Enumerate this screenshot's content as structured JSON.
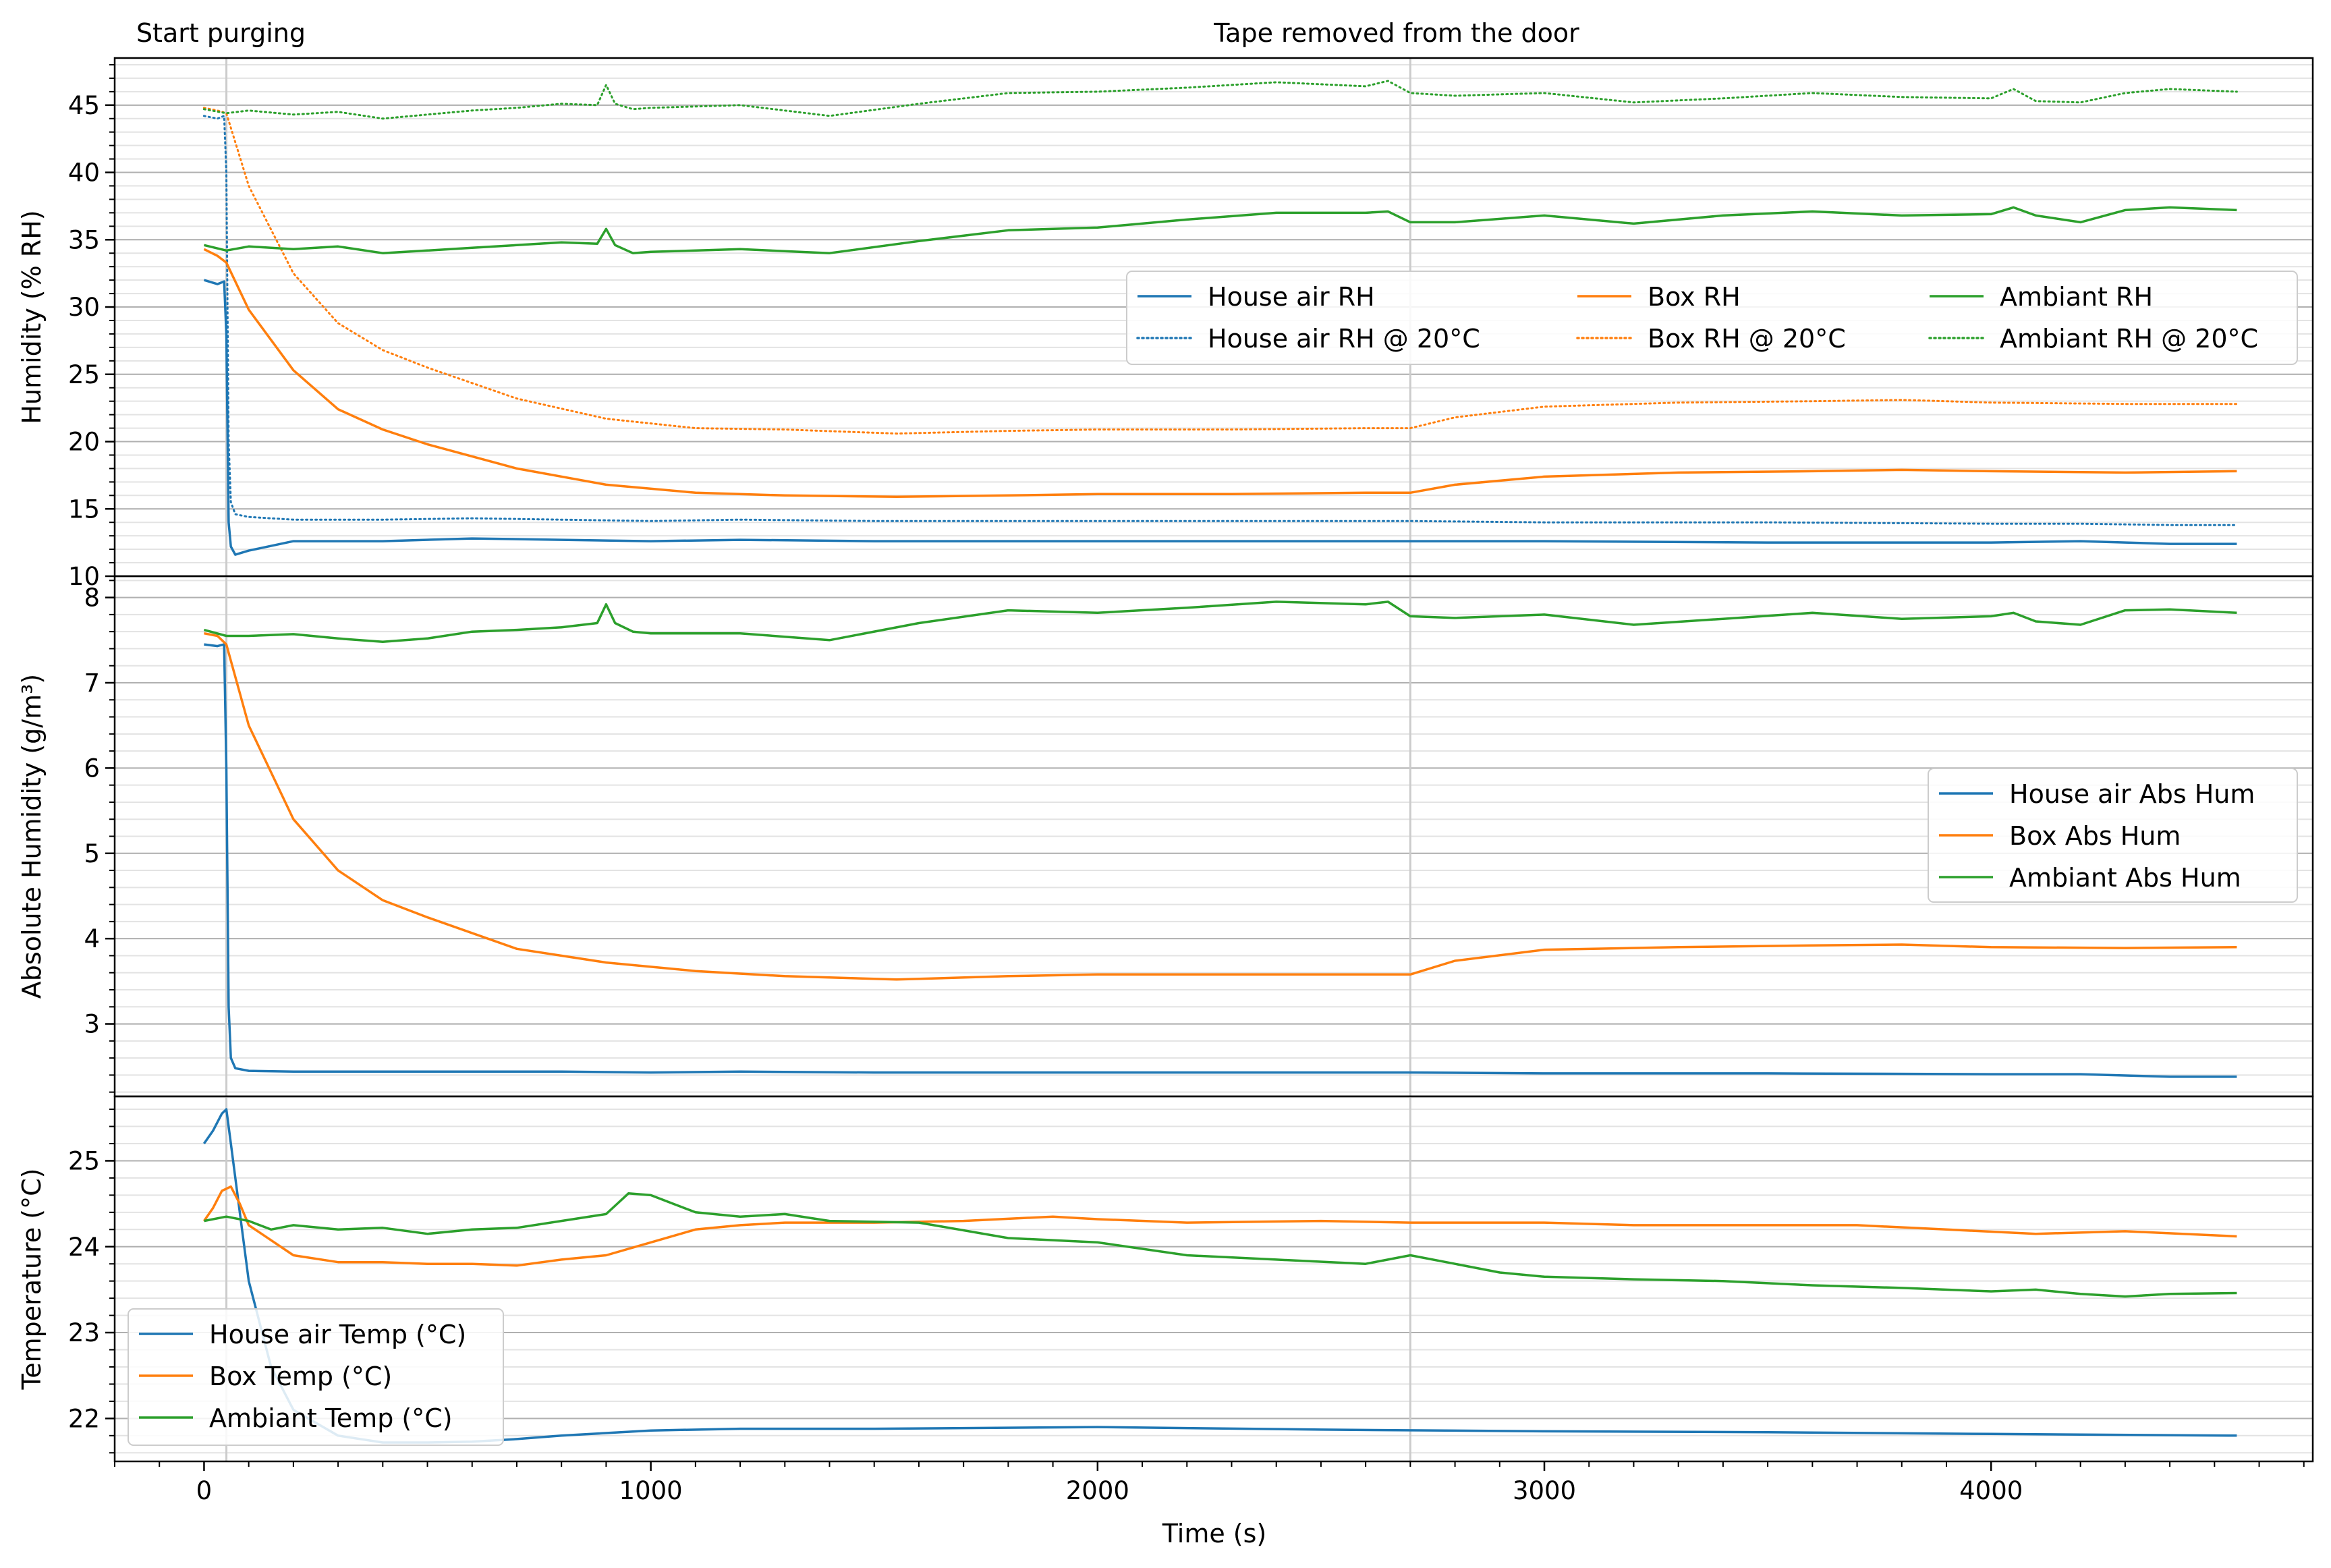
{
  "figure": {
    "xlabel": "Time (s)",
    "x_ticks": [
      0,
      1000,
      2000,
      3000,
      4000
    ],
    "annotations": [
      {
        "text": "Start purging",
        "x": 50
      },
      {
        "text": "Tape removed from the door",
        "x": 2700
      }
    ],
    "vlines_x": [
      50,
      2700
    ],
    "colors": {
      "house": "#1f77b4",
      "box": "#ff7f0e",
      "ambiant": "#2ca02c",
      "vline": "#cccccc",
      "grid_major": "#b0b0b0",
      "grid_minor": "#e3e3e3"
    },
    "grid": true
  },
  "chart_data": [
    {
      "type": "line",
      "ylabel": "Humidity (% RH)",
      "xlim": [
        -200,
        4720
      ],
      "ylim": [
        10,
        48.5
      ],
      "y_ticks": [
        10,
        15,
        20,
        25,
        30,
        35,
        40,
        45
      ],
      "legend": {
        "placement": "center-right",
        "columns": 3
      },
      "series": [
        {
          "name": "House air RH",
          "style": "solid",
          "color": "#1f77b4",
          "x": [
            0,
            30,
            45,
            50,
            55,
            60,
            70,
            100,
            200,
            400,
            600,
            800,
            1000,
            1200,
            1500,
            2000,
            2500,
            2700,
            3000,
            3500,
            4000,
            4200,
            4400,
            4550
          ],
          "y": [
            32.0,
            31.7,
            31.9,
            28,
            14,
            12.2,
            11.6,
            11.9,
            12.6,
            12.6,
            12.8,
            12.7,
            12.6,
            12.7,
            12.6,
            12.6,
            12.6,
            12.6,
            12.6,
            12.5,
            12.5,
            12.6,
            12.4,
            12.4
          ]
        },
        {
          "name": "House air RH @ 20°C",
          "style": "dotted",
          "color": "#1f77b4",
          "x": [
            0,
            30,
            45,
            50,
            55,
            60,
            70,
            100,
            200,
            400,
            600,
            800,
            1000,
            1200,
            1500,
            2000,
            2500,
            2700,
            3000,
            3500,
            4000,
            4200,
            4400,
            4550
          ],
          "y": [
            44.2,
            44.0,
            44.2,
            40,
            20,
            15.5,
            14.6,
            14.4,
            14.2,
            14.2,
            14.3,
            14.2,
            14.1,
            14.2,
            14.1,
            14.1,
            14.1,
            14.1,
            14.0,
            14.0,
            13.9,
            13.9,
            13.8,
            13.8
          ]
        },
        {
          "name": "Box RH",
          "style": "solid",
          "color": "#ff7f0e",
          "x": [
            0,
            30,
            50,
            100,
            200,
            300,
            400,
            500,
            700,
            900,
            1100,
            1300,
            1550,
            1800,
            2000,
            2300,
            2600,
            2700,
            2800,
            3000,
            3300,
            3600,
            3800,
            4000,
            4300,
            4550
          ],
          "y": [
            34.3,
            33.8,
            33.3,
            29.8,
            25.3,
            22.4,
            20.9,
            19.8,
            18.0,
            16.8,
            16.2,
            16.0,
            15.9,
            16.0,
            16.1,
            16.1,
            16.2,
            16.2,
            16.8,
            17.4,
            17.7,
            17.8,
            17.9,
            17.8,
            17.7,
            17.8
          ]
        },
        {
          "name": "Box RH @ 20°C",
          "style": "dotted",
          "color": "#ff7f0e",
          "x": [
            0,
            30,
            50,
            100,
            200,
            300,
            400,
            500,
            700,
            900,
            1100,
            1300,
            1550,
            1800,
            2000,
            2300,
            2600,
            2700,
            2800,
            3000,
            3300,
            3600,
            3800,
            4000,
            4300,
            4550
          ],
          "y": [
            44.8,
            44.6,
            44.4,
            39.0,
            32.5,
            28.8,
            26.8,
            25.5,
            23.2,
            21.7,
            21.0,
            20.9,
            20.6,
            20.8,
            20.9,
            20.9,
            21.0,
            21.0,
            21.8,
            22.6,
            22.9,
            23.0,
            23.1,
            22.9,
            22.8,
            22.8
          ]
        },
        {
          "name": "Ambiant RH",
          "style": "solid",
          "color": "#2ca02c",
          "x": [
            0,
            50,
            100,
            200,
            300,
            400,
            500,
            600,
            700,
            800,
            880,
            900,
            920,
            960,
            1000,
            1200,
            1400,
            1600,
            1800,
            2000,
            2200,
            2400,
            2600,
            2650,
            2700,
            2800,
            3000,
            3200,
            3400,
            3600,
            3800,
            4000,
            4050,
            4100,
            4200,
            4300,
            4400,
            4550
          ],
          "y": [
            34.6,
            34.2,
            34.5,
            34.3,
            34.5,
            34.0,
            34.2,
            34.4,
            34.6,
            34.8,
            34.7,
            35.8,
            34.6,
            34.0,
            34.1,
            34.3,
            34.0,
            34.9,
            35.7,
            35.9,
            36.5,
            37.0,
            37.0,
            37.1,
            36.3,
            36.3,
            36.8,
            36.2,
            36.8,
            37.1,
            36.8,
            36.9,
            37.4,
            36.8,
            36.3,
            37.2,
            37.4,
            37.2
          ]
        },
        {
          "name": "Ambiant RH @ 20°C",
          "style": "dotted",
          "color": "#2ca02c",
          "x": [
            0,
            50,
            100,
            200,
            300,
            400,
            500,
            600,
            700,
            800,
            880,
            900,
            920,
            960,
            1000,
            1200,
            1400,
            1600,
            1800,
            2000,
            2200,
            2400,
            2600,
            2650,
            2700,
            2800,
            3000,
            3200,
            3400,
            3600,
            3800,
            4000,
            4050,
            4100,
            4200,
            4300,
            4400,
            4550
          ],
          "y": [
            44.7,
            44.4,
            44.6,
            44.3,
            44.5,
            44.0,
            44.3,
            44.6,
            44.8,
            45.1,
            45.0,
            46.5,
            45.1,
            44.7,
            44.8,
            45.0,
            44.2,
            45.1,
            45.9,
            46.0,
            46.3,
            46.7,
            46.4,
            46.8,
            45.9,
            45.7,
            45.9,
            45.2,
            45.5,
            45.9,
            45.6,
            45.5,
            46.2,
            45.3,
            45.2,
            45.9,
            46.2,
            46.0
          ]
        }
      ]
    },
    {
      "type": "line",
      "ylabel": "Absolute Humidity (g/m³)",
      "xlim": [
        -200,
        4720
      ],
      "ylim": [
        2.15,
        8.25
      ],
      "y_ticks": [
        3,
        4,
        5,
        6,
        7,
        8
      ],
      "legend": {
        "placement": "center-right",
        "columns": 1
      },
      "series": [
        {
          "name": "House air Abs Hum",
          "style": "solid",
          "color": "#1f77b4",
          "x": [
            0,
            30,
            45,
            50,
            55,
            60,
            70,
            100,
            200,
            400,
            600,
            800,
            1000,
            1200,
            1500,
            2000,
            2500,
            2700,
            3000,
            3500,
            4000,
            4200,
            4400,
            4550
          ],
          "y": [
            7.45,
            7.43,
            7.45,
            6.0,
            3.2,
            2.6,
            2.48,
            2.45,
            2.44,
            2.44,
            2.44,
            2.44,
            2.43,
            2.44,
            2.43,
            2.43,
            2.43,
            2.43,
            2.42,
            2.42,
            2.41,
            2.41,
            2.38,
            2.38
          ]
        },
        {
          "name": "Box Abs Hum",
          "style": "solid",
          "color": "#ff7f0e",
          "x": [
            0,
            30,
            50,
            100,
            200,
            300,
            400,
            500,
            700,
            900,
            1100,
            1300,
            1550,
            1800,
            2000,
            2300,
            2600,
            2700,
            2800,
            3000,
            3300,
            3600,
            3800,
            4000,
            4300,
            4550
          ],
          "y": [
            7.58,
            7.55,
            7.45,
            6.5,
            5.4,
            4.8,
            4.45,
            4.25,
            3.88,
            3.72,
            3.62,
            3.56,
            3.52,
            3.56,
            3.58,
            3.58,
            3.58,
            3.58,
            3.74,
            3.87,
            3.9,
            3.92,
            3.93,
            3.9,
            3.89,
            3.9
          ]
        },
        {
          "name": "Ambiant Abs Hum",
          "style": "solid",
          "color": "#2ca02c",
          "x": [
            0,
            50,
            100,
            200,
            300,
            400,
            500,
            600,
            700,
            800,
            880,
            900,
            920,
            960,
            1000,
            1200,
            1400,
            1600,
            1800,
            2000,
            2200,
            2400,
            2600,
            2650,
            2700,
            2800,
            3000,
            3200,
            3400,
            3600,
            3800,
            4000,
            4050,
            4100,
            4200,
            4300,
            4400,
            4550
          ],
          "y": [
            7.62,
            7.55,
            7.55,
            7.57,
            7.52,
            7.48,
            7.52,
            7.6,
            7.62,
            7.65,
            7.7,
            7.92,
            7.7,
            7.6,
            7.58,
            7.58,
            7.5,
            7.7,
            7.85,
            7.82,
            7.88,
            7.95,
            7.92,
            7.95,
            7.78,
            7.76,
            7.8,
            7.68,
            7.75,
            7.82,
            7.75,
            7.78,
            7.82,
            7.72,
            7.68,
            7.85,
            7.86,
            7.82
          ]
        }
      ]
    },
    {
      "type": "line",
      "ylabel": "Temperature (°C)",
      "xlim": [
        -200,
        4720
      ],
      "ylim": [
        21.5,
        25.75
      ],
      "y_ticks": [
        22,
        23,
        24,
        25
      ],
      "legend": {
        "placement": "lower-left",
        "columns": 1
      },
      "series": [
        {
          "name": "House air Temp (°C)",
          "style": "solid",
          "color": "#1f77b4",
          "x": [
            0,
            20,
            40,
            50,
            60,
            80,
            100,
            150,
            200,
            300,
            400,
            500,
            600,
            700,
            800,
            1000,
            1200,
            1500,
            2000,
            2500,
            3000,
            3500,
            4000,
            4550
          ],
          "y": [
            25.2,
            25.35,
            25.55,
            25.6,
            25.2,
            24.4,
            23.6,
            22.6,
            22.1,
            21.8,
            21.72,
            21.72,
            21.73,
            21.76,
            21.8,
            21.86,
            21.88,
            21.88,
            21.9,
            21.87,
            21.85,
            21.84,
            21.82,
            21.8
          ]
        },
        {
          "name": "Box Temp (°C)",
          "style": "solid",
          "color": "#ff7f0e",
          "x": [
            0,
            20,
            40,
            60,
            80,
            100,
            200,
            300,
            400,
            500,
            600,
            700,
            800,
            900,
            1000,
            1100,
            1200,
            1300,
            1500,
            1700,
            1900,
            2000,
            2200,
            2500,
            2700,
            3000,
            3200,
            3500,
            3700,
            3900,
            4100,
            4300,
            4550
          ],
          "y": [
            24.3,
            24.45,
            24.65,
            24.7,
            24.5,
            24.25,
            23.9,
            23.82,
            23.82,
            23.8,
            23.8,
            23.78,
            23.85,
            23.9,
            24.05,
            24.2,
            24.25,
            24.28,
            24.28,
            24.3,
            24.35,
            24.32,
            24.28,
            24.3,
            24.28,
            24.28,
            24.25,
            24.25,
            24.25,
            24.2,
            24.15,
            24.18,
            24.12
          ]
        },
        {
          "name": "Ambiant Temp (°C)",
          "style": "solid",
          "color": "#2ca02c",
          "x": [
            0,
            50,
            100,
            150,
            200,
            300,
            400,
            500,
            600,
            700,
            800,
            900,
            950,
            1000,
            1050,
            1100,
            1200,
            1300,
            1400,
            1600,
            1800,
            2000,
            2200,
            2400,
            2600,
            2700,
            2800,
            2900,
            3000,
            3200,
            3400,
            3600,
            3800,
            4000,
            4100,
            4200,
            4300,
            4400,
            4550
          ],
          "y": [
            24.3,
            24.35,
            24.3,
            24.2,
            24.25,
            24.2,
            24.22,
            24.15,
            24.2,
            24.22,
            24.3,
            24.38,
            24.62,
            24.6,
            24.5,
            24.4,
            24.35,
            24.38,
            24.3,
            24.28,
            24.1,
            24.05,
            23.9,
            23.85,
            23.8,
            23.9,
            23.8,
            23.7,
            23.65,
            23.62,
            23.6,
            23.55,
            23.52,
            23.48,
            23.5,
            23.45,
            23.42,
            23.45,
            23.46
          ]
        }
      ]
    }
  ]
}
